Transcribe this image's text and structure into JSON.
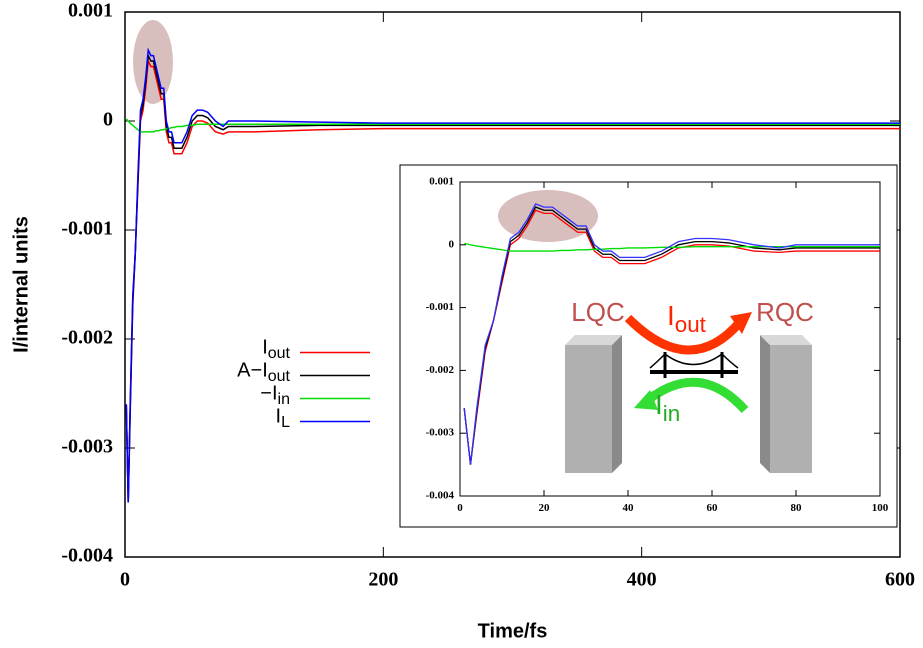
{
  "chart_data": [
    {
      "type": "line",
      "x_label": "Time/fs",
      "y_label": "I/internal units",
      "x": [
        1,
        2.5,
        4,
        6,
        8,
        10,
        12,
        14,
        16,
        18,
        20,
        22,
        24,
        26,
        28,
        30,
        32,
        34,
        36,
        38,
        40,
        44,
        48,
        52,
        56,
        60,
        64,
        70,
        76,
        80,
        90,
        100,
        150,
        200,
        300,
        400,
        500,
        600
      ],
      "xlim": [
        0,
        600
      ],
      "xticks": [
        0,
        200,
        400,
        600
      ],
      "ylim": [
        -0.004,
        0.001
      ],
      "yticks": [
        0.001,
        0,
        -0.001,
        -0.002,
        -0.003,
        -0.004
      ],
      "legend": "left",
      "series": [
        {
          "name": "Iout",
          "color": "#ff0000",
          "values": [
            -0.0026,
            -0.0035,
            -0.0027,
            -0.0017,
            -0.0012,
            -0.0006,
            0,
            0.0001,
            0.0003,
            0.00055,
            0.0005,
            0.0005,
            0.0004,
            0.0003,
            0.0002,
            0.0002,
            -0.0001,
            -0.0002,
            -0.0002,
            -0.0003,
            -0.0003,
            -0.0003,
            -0.0002,
            -5e-05,
            0,
            0,
            -2e-05,
            -0.0001,
            -0.00012,
            -0.0001,
            -0.0001,
            -0.0001,
            -8e-05,
            -7e-05,
            -7e-05,
            -7e-05,
            -7e-05,
            -7e-05
          ]
        },
        {
          "name": "A−Iout",
          "color": "#000000",
          "values": [
            -0.0026,
            -0.0035,
            -0.00265,
            -0.00165,
            -0.0012,
            -0.00055,
            5e-05,
            0.00015,
            0.00035,
            0.0006,
            0.00055,
            0.00055,
            0.00045,
            0.00035,
            0.00025,
            0.00025,
            -5e-05,
            -0.00015,
            -0.00015,
            -0.00025,
            -0.00025,
            -0.00025,
            -0.00015,
            0,
            5e-05,
            5e-05,
            3e-05,
            -5e-05,
            -8e-05,
            -5e-05,
            -5e-05,
            -5e-05,
            -4e-05,
            -4e-05,
            -4e-05,
            -4e-05,
            -4e-05,
            -4e-05
          ]
        },
        {
          "name": "−Iin",
          "color": "#00dd00",
          "values": [
            2e-05,
            0,
            -2e-05,
            -4e-05,
            -6e-05,
            -8e-05,
            -0.0001,
            -0.0001,
            -0.0001,
            -0.0001,
            -0.0001,
            -0.0001,
            -9e-05,
            -9e-05,
            -8e-05,
            -8e-05,
            -7e-05,
            -7e-05,
            -6e-05,
            -6e-05,
            -5e-05,
            -5e-05,
            -4e-05,
            -4e-05,
            -3e-05,
            -3e-05,
            -3e-05,
            -3e-05,
            -3e-05,
            -3e-05,
            -3e-05,
            -3e-05,
            -3e-05,
            -3e-05,
            -3e-05,
            -3e-05,
            -3e-05,
            -3e-05
          ]
        },
        {
          "name": "IL",
          "color": "#0000ff",
          "values": [
            -0.0026,
            -0.0035,
            -0.0026,
            -0.0016,
            -0.0012,
            -0.0005,
            0.0001,
            0.0002,
            0.0004,
            0.00065,
            0.0006,
            0.0006,
            0.0005,
            0.0004,
            0.0003,
            0.0003,
            0,
            -0.0001,
            -0.0001,
            -0.0002,
            -0.0002,
            -0.0002,
            -0.0001,
            5e-05,
            0.0001,
            0.0001,
            8e-05,
            0,
            -5e-05,
            0,
            0,
            0,
            -1e-05,
            -2e-05,
            -2e-05,
            -2e-05,
            -2e-05,
            -2e-05
          ]
        }
      ]
    },
    {
      "type": "line",
      "x": [
        1,
        2.5,
        4,
        6,
        8,
        10,
        12,
        14,
        16,
        18,
        20,
        22,
        24,
        26,
        28,
        30,
        32,
        34,
        36,
        38,
        40,
        44,
        48,
        52,
        56,
        60,
        64,
        70,
        76,
        80,
        90,
        100
      ],
      "xlim": [
        0,
        100
      ],
      "xticks": [
        0,
        20,
        40,
        60,
        80,
        100
      ],
      "ylim": [
        -0.004,
        0.001
      ],
      "yticks": [
        0.001,
        0,
        -0.001,
        -0.002,
        -0.003,
        -0.004
      ],
      "annotations": [
        "LQC",
        "RQC",
        "Iout",
        "Iin"
      ],
      "series": [
        {
          "color": "#ff0000",
          "values": [
            -0.0026,
            -0.0035,
            -0.0027,
            -0.0017,
            -0.0012,
            -0.0006,
            0,
            0.0001,
            0.0003,
            0.00055,
            0.0005,
            0.0005,
            0.0004,
            0.0003,
            0.0002,
            0.0002,
            -0.0001,
            -0.0002,
            -0.0002,
            -0.0003,
            -0.0003,
            -0.0003,
            -0.0002,
            -5e-05,
            0,
            0,
            -2e-05,
            -0.0001,
            -0.00012,
            -0.0001,
            -0.0001,
            -0.0001
          ]
        },
        {
          "color": "#000000",
          "values": [
            -0.0026,
            -0.0035,
            -0.00265,
            -0.00165,
            -0.0012,
            -0.00055,
            5e-05,
            0.00015,
            0.00035,
            0.0006,
            0.00055,
            0.00055,
            0.00045,
            0.00035,
            0.00025,
            0.00025,
            -5e-05,
            -0.00015,
            -0.00015,
            -0.00025,
            -0.00025,
            -0.00025,
            -0.00015,
            0,
            5e-05,
            5e-05,
            3e-05,
            -5e-05,
            -8e-05,
            -5e-05,
            -5e-05,
            -5e-05
          ]
        },
        {
          "color": "#00dd00",
          "values": [
            2e-05,
            0,
            -2e-05,
            -4e-05,
            -6e-05,
            -8e-05,
            -0.0001,
            -0.0001,
            -0.0001,
            -0.0001,
            -0.0001,
            -0.0001,
            -9e-05,
            -9e-05,
            -8e-05,
            -8e-05,
            -7e-05,
            -7e-05,
            -6e-05,
            -6e-05,
            -5e-05,
            -5e-05,
            -4e-05,
            -4e-05,
            -3e-05,
            -3e-05,
            -3e-05,
            -3e-05,
            -3e-05,
            -3e-05,
            -3e-05,
            -3e-05
          ]
        },
        {
          "color": "#3333ff",
          "values": [
            -0.0026,
            -0.0035,
            -0.0026,
            -0.0016,
            -0.0012,
            -0.0005,
            0.0001,
            0.0002,
            0.0004,
            0.00065,
            0.0006,
            0.0006,
            0.0005,
            0.0004,
            0.0003,
            0.0003,
            0,
            -0.0001,
            -0.0001,
            -0.0002,
            -0.0002,
            -0.0002,
            -0.0001,
            5e-05,
            0.0001,
            0.0001,
            8e-05,
            0,
            -5e-05,
            0,
            0,
            0
          ]
        }
      ]
    }
  ]
}
